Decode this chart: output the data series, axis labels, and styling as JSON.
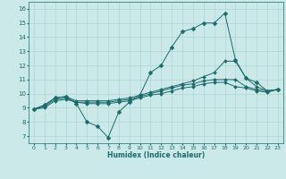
{
  "title": "",
  "xlabel": "Humidex (Indice chaleur)",
  "ylabel": "",
  "xlim": [
    -0.5,
    23.5
  ],
  "ylim": [
    6.5,
    16.5
  ],
  "xticks": [
    0,
    1,
    2,
    3,
    4,
    5,
    6,
    7,
    8,
    9,
    10,
    11,
    12,
    13,
    14,
    15,
    16,
    17,
    18,
    19,
    20,
    21,
    22,
    23
  ],
  "yticks": [
    7,
    8,
    9,
    10,
    11,
    12,
    13,
    14,
    15,
    16
  ],
  "background_color": "#cce9e9",
  "grid_color": "#afd4d4",
  "line_color": "#1a6b6b",
  "series": [
    {
      "x": [
        0,
        1,
        2,
        3,
        4,
        5,
        6,
        7,
        8,
        9,
        10,
        11,
        12,
        13,
        14,
        15,
        16,
        17,
        18,
        19,
        20,
        21,
        22,
        23
      ],
      "y": [
        8.9,
        9.2,
        9.7,
        9.8,
        9.3,
        8.0,
        7.7,
        6.9,
        8.7,
        9.4,
        9.9,
        11.5,
        12.0,
        13.3,
        14.4,
        14.6,
        15.0,
        15.0,
        15.7,
        12.4,
        11.1,
        10.8,
        10.2,
        10.3
      ],
      "markersize": 2.5
    },
    {
      "x": [
        0,
        1,
        2,
        3,
        4,
        5,
        6,
        7,
        8,
        9,
        10,
        11,
        12,
        13,
        14,
        15,
        16,
        17,
        18,
        19,
        20,
        21,
        22,
        23
      ],
      "y": [
        8.9,
        9.2,
        9.7,
        9.8,
        9.5,
        9.5,
        9.5,
        9.5,
        9.6,
        9.7,
        9.9,
        10.1,
        10.3,
        10.5,
        10.7,
        10.9,
        11.2,
        11.5,
        12.3,
        12.3,
        11.1,
        10.5,
        10.2,
        10.3
      ],
      "markersize": 2.0
    },
    {
      "x": [
        0,
        1,
        2,
        3,
        4,
        5,
        6,
        7,
        8,
        9,
        10,
        11,
        12,
        13,
        14,
        15,
        16,
        17,
        18,
        19,
        20,
        21,
        22,
        23
      ],
      "y": [
        8.9,
        9.1,
        9.6,
        9.7,
        9.4,
        9.4,
        9.4,
        9.4,
        9.5,
        9.6,
        9.8,
        10.0,
        10.2,
        10.4,
        10.6,
        10.7,
        10.9,
        11.0,
        11.0,
        11.0,
        10.5,
        10.3,
        10.2,
        10.3
      ],
      "markersize": 2.0
    },
    {
      "x": [
        0,
        1,
        2,
        3,
        4,
        5,
        6,
        7,
        8,
        9,
        10,
        11,
        12,
        13,
        14,
        15,
        16,
        17,
        18,
        19,
        20,
        21,
        22,
        23
      ],
      "y": [
        8.9,
        9.0,
        9.5,
        9.6,
        9.4,
        9.3,
        9.3,
        9.3,
        9.4,
        9.5,
        9.7,
        9.9,
        10.0,
        10.2,
        10.4,
        10.5,
        10.7,
        10.8,
        10.8,
        10.5,
        10.4,
        10.2,
        10.1,
        10.3
      ],
      "markersize": 2.0
    }
  ]
}
